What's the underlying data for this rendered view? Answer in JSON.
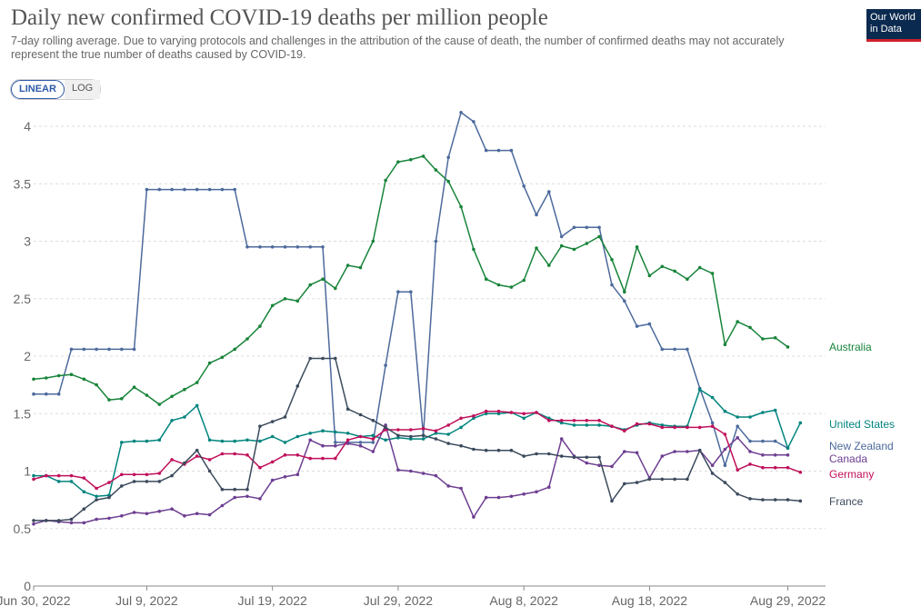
{
  "header": {
    "title": "Daily new confirmed COVID-19 deaths per million people",
    "subtitle": "7-day rolling average. Due to varying protocols and challenges in the attribution of the cause of death, the number of confirmed deaths may not accurately represent the true number of deaths caused by COVID-19.",
    "logo_line1": "Our World",
    "logo_line2": "in Data"
  },
  "controls": {
    "linear_label": "LINEAR",
    "log_label": "LOG",
    "selected": "LINEAR"
  },
  "colors": {
    "Australia": "#18843a",
    "United States": "#00847e",
    "New Zealand": "#4c6a9c",
    "Canada": "#6d3e91",
    "Germany": "#c0105b",
    "France": "#3b4a5c"
  },
  "chart_data": {
    "type": "line",
    "title": "Daily new confirmed COVID-19 deaths per million people",
    "x_start_day": 0,
    "x_end_day": 63,
    "xlabel": "",
    "ylabel": "",
    "ylim": [
      0,
      4.2
    ],
    "y_ticks": [
      0,
      0.5,
      1,
      1.5,
      2,
      2.5,
      3,
      3.5,
      4
    ],
    "y_tick_labels": [
      "0",
      "0.5",
      "1",
      "1.5",
      "2",
      "2.5",
      "3",
      "3.5",
      "4"
    ],
    "x_ticks": [
      {
        "day": 0,
        "label": "Jun 30, 2022"
      },
      {
        "day": 9,
        "label": "Jul 9, 2022"
      },
      {
        "day": 19,
        "label": "Jul 19, 2022"
      },
      {
        "day": 29,
        "label": "Jul 29, 2022"
      },
      {
        "day": 39,
        "label": "Aug 8, 2022"
      },
      {
        "day": 49,
        "label": "Aug 18, 2022"
      },
      {
        "day": 60,
        "label": "Aug 29, 2022"
      }
    ],
    "grid": true,
    "series": [
      {
        "name": "New Zealand",
        "label": "New Zealand",
        "values": [
          1.67,
          1.67,
          1.67,
          2.06,
          2.06,
          2.06,
          2.06,
          2.06,
          2.06,
          3.45,
          3.45,
          3.45,
          3.45,
          3.45,
          3.45,
          3.45,
          3.45,
          2.95,
          2.95,
          2.95,
          2.95,
          2.95,
          2.95,
          2.95,
          1.25,
          1.25,
          1.25,
          1.25,
          1.92,
          2.56,
          2.56,
          1.31,
          3.0,
          3.73,
          4.12,
          4.04,
          3.79,
          3.79,
          3.79,
          3.48,
          3.23,
          3.43,
          3.04,
          3.12,
          3.12,
          3.12,
          2.62,
          2.48,
          2.26,
          2.28,
          2.06,
          2.06,
          2.06,
          1.72,
          1.42,
          1.05,
          1.39,
          1.26,
          1.26,
          1.26,
          1.2
        ]
      },
      {
        "name": "Australia",
        "label": "Australia",
        "values": [
          1.8,
          1.81,
          1.83,
          1.84,
          1.8,
          1.75,
          1.62,
          1.63,
          1.73,
          1.66,
          1.58,
          1.65,
          1.71,
          1.77,
          1.94,
          1.99,
          2.06,
          2.15,
          2.26,
          2.44,
          2.5,
          2.48,
          2.62,
          2.67,
          2.59,
          2.79,
          2.77,
          3.0,
          3.53,
          3.69,
          3.71,
          3.74,
          3.62,
          3.52,
          3.3,
          2.93,
          2.67,
          2.62,
          2.6,
          2.66,
          2.94,
          2.79,
          2.96,
          2.93,
          2.98,
          3.04,
          2.84,
          2.56,
          2.95,
          2.7,
          2.78,
          2.74,
          2.67,
          2.77,
          2.72,
          2.1,
          2.3,
          2.25,
          2.15,
          2.16,
          2.08
        ]
      },
      {
        "name": "United States",
        "label": "United States",
        "values": [
          0.96,
          0.96,
          0.91,
          0.91,
          0.82,
          0.78,
          0.79,
          1.25,
          1.26,
          1.26,
          1.27,
          1.44,
          1.47,
          1.57,
          1.27,
          1.26,
          1.26,
          1.27,
          1.26,
          1.3,
          1.25,
          1.3,
          1.33,
          1.35,
          1.34,
          1.33,
          1.3,
          1.31,
          1.27,
          1.29,
          1.28,
          1.28,
          1.33,
          1.32,
          1.38,
          1.46,
          1.5,
          1.5,
          1.51,
          1.46,
          1.51,
          1.46,
          1.42,
          1.4,
          1.4,
          1.4,
          1.39,
          1.36,
          1.4,
          1.42,
          1.4,
          1.39,
          1.39,
          1.71,
          1.64,
          1.52,
          1.47,
          1.47,
          1.51,
          1.53,
          1.2,
          1.42
        ]
      },
      {
        "name": "Canada",
        "label": "Canada",
        "values": [
          0.54,
          0.57,
          0.56,
          0.55,
          0.55,
          0.58,
          0.59,
          0.61,
          0.64,
          0.63,
          0.65,
          0.67,
          0.61,
          0.63,
          0.62,
          0.7,
          0.77,
          0.78,
          0.76,
          0.92,
          0.95,
          0.97,
          1.27,
          1.22,
          1.22,
          1.24,
          1.22,
          1.17,
          1.4,
          1.01,
          1.0,
          0.98,
          0.96,
          0.87,
          0.85,
          0.6,
          0.77,
          0.77,
          0.78,
          0.8,
          0.82,
          0.86,
          1.28,
          1.13,
          1.07,
          1.05,
          1.04,
          1.17,
          1.16,
          0.94,
          1.13,
          1.17,
          1.17,
          1.18,
          1.05,
          1.19,
          1.29,
          1.17,
          1.14,
          1.14,
          1.14
        ]
      },
      {
        "name": "Germany",
        "label": "Germany",
        "values": [
          0.93,
          0.96,
          0.96,
          0.96,
          0.94,
          0.85,
          0.9,
          0.97,
          0.97,
          0.97,
          0.98,
          1.1,
          1.06,
          1.13,
          1.1,
          1.15,
          1.15,
          1.14,
          1.03,
          1.08,
          1.14,
          1.14,
          1.11,
          1.11,
          1.11,
          1.27,
          1.3,
          1.28,
          1.36,
          1.36,
          1.36,
          1.37,
          1.35,
          1.4,
          1.46,
          1.48,
          1.52,
          1.52,
          1.51,
          1.5,
          1.51,
          1.44,
          1.44,
          1.44,
          1.44,
          1.44,
          1.39,
          1.35,
          1.41,
          1.41,
          1.38,
          1.38,
          1.38,
          1.38,
          1.39,
          1.32,
          1.01,
          1.06,
          1.03,
          1.03,
          1.03,
          0.99
        ]
      },
      {
        "name": "France",
        "label": "France",
        "values": [
          0.57,
          0.57,
          0.57,
          0.58,
          0.67,
          0.75,
          0.77,
          0.87,
          0.91,
          0.91,
          0.91,
          0.96,
          1.07,
          1.18,
          1.0,
          0.84,
          0.84,
          0.84,
          1.39,
          1.43,
          1.47,
          1.74,
          1.98,
          1.98,
          1.98,
          1.54,
          1.49,
          1.44,
          1.38,
          1.31,
          1.3,
          1.31,
          1.28,
          1.24,
          1.22,
          1.19,
          1.18,
          1.18,
          1.18,
          1.13,
          1.15,
          1.15,
          1.13,
          1.12,
          1.12,
          1.12,
          0.74,
          0.89,
          0.9,
          0.93,
          0.93,
          0.93,
          0.93,
          1.18,
          0.98,
          0.9,
          0.8,
          0.76,
          0.75,
          0.75,
          0.75,
          0.74
        ]
      }
    ],
    "end_labels": [
      {
        "name": "Australia",
        "text": "Australia"
      },
      {
        "name": "United States",
        "text": "United States"
      },
      {
        "name": "New Zealand",
        "text": "New Zealand"
      },
      {
        "name": "Canada",
        "text": "Canada"
      },
      {
        "name": "Germany",
        "text": "Germany"
      },
      {
        "name": "France",
        "text": "France"
      }
    ]
  }
}
